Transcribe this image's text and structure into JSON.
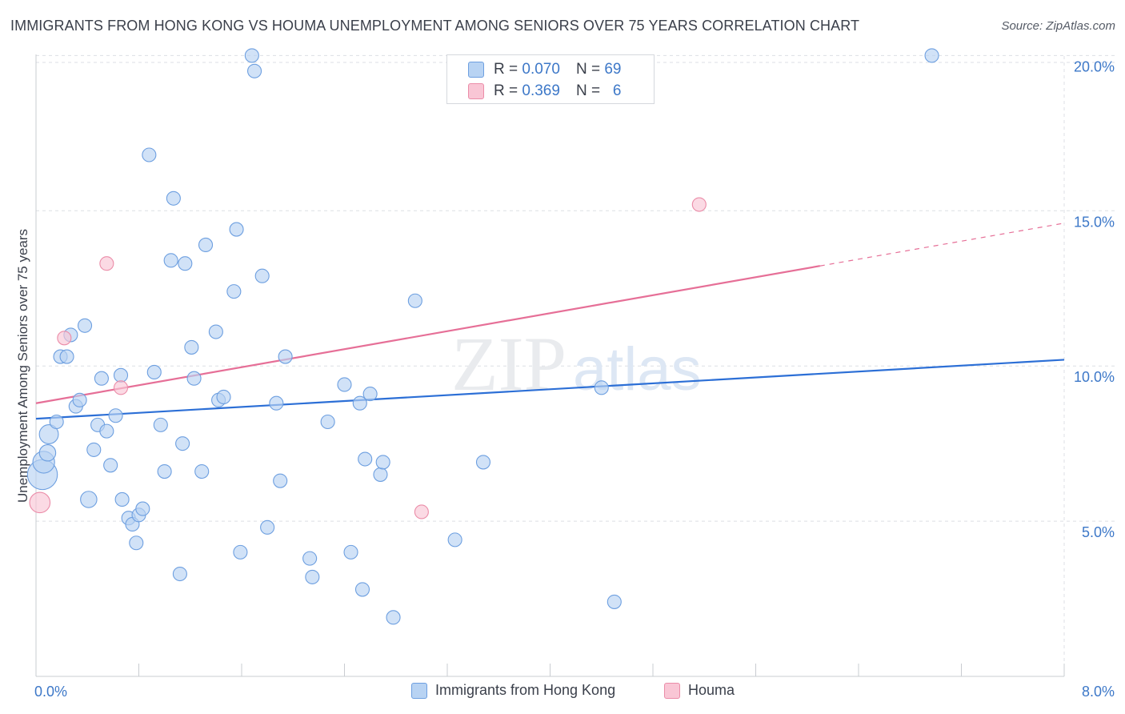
{
  "header": {
    "title": "IMMIGRANTS FROM HONG KONG VS HOUMA UNEMPLOYMENT AMONG SENIORS OVER 75 YEARS CORRELATION CHART",
    "source": "Source: ZipAtlas.com"
  },
  "watermark": {
    "zip": "ZIP",
    "atlas": "atlas"
  },
  "legend": {
    "series": [
      {
        "r_label": "R =",
        "r_value": "0.070",
        "n_label": "N =",
        "n_value": "69"
      },
      {
        "r_label": "R =",
        "r_value": "0.369",
        "n_label": "N =",
        "n_value": "6"
      }
    ]
  },
  "colors": {
    "blue_fill": "#b8d3f3",
    "blue_stroke": "#6d9fe0",
    "blue_line": "#2c6fd6",
    "pink_fill": "#f9c6d5",
    "pink_stroke": "#eb8ca8",
    "pink_line": "#e66f97",
    "tick_text": "#3d78c8",
    "grid": "#dcdfe4"
  },
  "chart_data": {
    "type": "scatter",
    "title": "IMMIGRANTS FROM HONG KONG VS HOUMA UNEMPLOYMENT AMONG SENIORS OVER 75 YEARS CORRELATION CHART",
    "xlabel": "",
    "ylabel": "Unemployment Among Seniors over 75 years",
    "xlim": [
      0,
      8
    ],
    "ylim": [
      0,
      20.5
    ],
    "x_ticks": [
      0,
      8
    ],
    "x_tick_labels": [
      "0.0%",
      "8.0%"
    ],
    "y_ticks": [
      5,
      10,
      15,
      20
    ],
    "y_tick_labels": [
      "5.0%",
      "10.0%",
      "15.0%",
      "20.0%"
    ],
    "legend_position": "top-center",
    "series": [
      {
        "name": "Immigrants from Hong Kong",
        "color": "blue",
        "trend": {
          "x": [
            0,
            8
          ],
          "y": [
            8.3,
            10.2
          ]
        },
        "points": [
          {
            "x": 0.05,
            "y": 6.5,
            "s": 2.2
          },
          {
            "x": 0.06,
            "y": 6.9,
            "s": 1.6
          },
          {
            "x": 0.09,
            "y": 7.2,
            "s": 1.2
          },
          {
            "x": 0.1,
            "y": 7.8,
            "s": 1.4
          },
          {
            "x": 0.16,
            "y": 8.2,
            "s": 1.0
          },
          {
            "x": 0.19,
            "y": 10.3,
            "s": 1.0
          },
          {
            "x": 0.24,
            "y": 10.3,
            "s": 1.0
          },
          {
            "x": 0.27,
            "y": 11.0,
            "s": 1.0
          },
          {
            "x": 0.31,
            "y": 8.7,
            "s": 1.0
          },
          {
            "x": 0.34,
            "y": 8.9,
            "s": 1.0
          },
          {
            "x": 0.38,
            "y": 11.3,
            "s": 1.0
          },
          {
            "x": 0.41,
            "y": 5.7,
            "s": 1.2
          },
          {
            "x": 0.45,
            "y": 7.3,
            "s": 1.0
          },
          {
            "x": 0.48,
            "y": 8.1,
            "s": 1.0
          },
          {
            "x": 0.51,
            "y": 9.6,
            "s": 1.0
          },
          {
            "x": 0.55,
            "y": 7.9,
            "s": 1.0
          },
          {
            "x": 0.58,
            "y": 6.8,
            "s": 1.0
          },
          {
            "x": 0.62,
            "y": 8.4,
            "s": 1.0
          },
          {
            "x": 0.66,
            "y": 9.7,
            "s": 1.0
          },
          {
            "x": 0.67,
            "y": 5.7,
            "s": 1.0
          },
          {
            "x": 0.72,
            "y": 5.1,
            "s": 1.0
          },
          {
            "x": 0.75,
            "y": 4.9,
            "s": 1.0
          },
          {
            "x": 0.78,
            "y": 4.3,
            "s": 1.0
          },
          {
            "x": 0.8,
            "y": 5.2,
            "s": 1.0
          },
          {
            "x": 0.83,
            "y": 5.4,
            "s": 1.0
          },
          {
            "x": 0.88,
            "y": 16.8,
            "s": 1.0
          },
          {
            "x": 0.92,
            "y": 9.8,
            "s": 1.0
          },
          {
            "x": 0.97,
            "y": 8.1,
            "s": 1.0
          },
          {
            "x": 1.0,
            "y": 6.6,
            "s": 1.0
          },
          {
            "x": 1.05,
            "y": 13.4,
            "s": 1.0
          },
          {
            "x": 1.07,
            "y": 15.4,
            "s": 1.0
          },
          {
            "x": 1.12,
            "y": 3.3,
            "s": 1.0
          },
          {
            "x": 1.14,
            "y": 7.5,
            "s": 1.0
          },
          {
            "x": 1.16,
            "y": 13.3,
            "s": 1.0
          },
          {
            "x": 1.21,
            "y": 10.6,
            "s": 1.0
          },
          {
            "x": 1.23,
            "y": 9.6,
            "s": 1.0
          },
          {
            "x": 1.29,
            "y": 6.6,
            "s": 1.0
          },
          {
            "x": 1.32,
            "y": 13.9,
            "s": 1.0
          },
          {
            "x": 1.4,
            "y": 11.1,
            "s": 1.0
          },
          {
            "x": 1.42,
            "y": 8.9,
            "s": 1.0
          },
          {
            "x": 1.46,
            "y": 9.0,
            "s": 1.0
          },
          {
            "x": 1.54,
            "y": 12.4,
            "s": 1.0
          },
          {
            "x": 1.56,
            "y": 14.4,
            "s": 1.0
          },
          {
            "x": 1.59,
            "y": 4.0,
            "s": 1.0
          },
          {
            "x": 1.68,
            "y": 20.0,
            "s": 1.0
          },
          {
            "x": 1.7,
            "y": 19.5,
            "s": 1.0
          },
          {
            "x": 1.76,
            "y": 12.9,
            "s": 1.0
          },
          {
            "x": 1.8,
            "y": 4.8,
            "s": 1.0
          },
          {
            "x": 1.87,
            "y": 8.8,
            "s": 1.0
          },
          {
            "x": 1.9,
            "y": 6.3,
            "s": 1.0
          },
          {
            "x": 1.94,
            "y": 10.3,
            "s": 1.0
          },
          {
            "x": 2.13,
            "y": 3.8,
            "s": 1.0
          },
          {
            "x": 2.15,
            "y": 3.2,
            "s": 1.0
          },
          {
            "x": 2.27,
            "y": 8.2,
            "s": 1.0
          },
          {
            "x": 2.4,
            "y": 9.4,
            "s": 1.0
          },
          {
            "x": 2.45,
            "y": 4.0,
            "s": 1.0
          },
          {
            "x": 2.52,
            "y": 8.8,
            "s": 1.0
          },
          {
            "x": 2.54,
            "y": 2.8,
            "s": 1.0
          },
          {
            "x": 2.56,
            "y": 7.0,
            "s": 1.0
          },
          {
            "x": 2.6,
            "y": 9.1,
            "s": 1.0
          },
          {
            "x": 2.68,
            "y": 6.5,
            "s": 1.0
          },
          {
            "x": 2.7,
            "y": 6.9,
            "s": 1.0
          },
          {
            "x": 2.78,
            "y": 1.9,
            "s": 1.0
          },
          {
            "x": 2.95,
            "y": 12.1,
            "s": 1.0
          },
          {
            "x": 3.26,
            "y": 4.4,
            "s": 1.0
          },
          {
            "x": 3.48,
            "y": 6.9,
            "s": 1.0
          },
          {
            "x": 4.4,
            "y": 9.3,
            "s": 1.0
          },
          {
            "x": 4.5,
            "y": 2.4,
            "s": 1.0
          },
          {
            "x": 6.97,
            "y": 20.0,
            "s": 1.0
          }
        ]
      },
      {
        "name": "Houma",
        "color": "pink",
        "trend": {
          "x": [
            0,
            8
          ],
          "y": [
            8.8,
            14.6
          ],
          "solid_until_x": 6.1
        },
        "points": [
          {
            "x": 0.03,
            "y": 5.6,
            "s": 1.5
          },
          {
            "x": 0.22,
            "y": 10.9,
            "s": 1.0
          },
          {
            "x": 0.55,
            "y": 13.3,
            "s": 1.0
          },
          {
            "x": 0.66,
            "y": 9.3,
            "s": 1.0
          },
          {
            "x": 3.0,
            "y": 5.3,
            "s": 1.0
          },
          {
            "x": 5.16,
            "y": 15.2,
            "s": 1.0
          }
        ]
      }
    ]
  }
}
